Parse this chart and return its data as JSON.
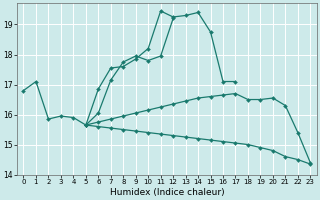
{
  "xlabel": "Humidex (Indice chaleur)",
  "bg_color": "#cdeaea",
  "grid_color": "#ffffff",
  "line_color": "#1a7a6e",
  "xlim": [
    -0.5,
    23.5
  ],
  "ylim": [
    14,
    19.7
  ],
  "yticks": [
    14,
    15,
    16,
    17,
    18,
    19
  ],
  "xticks": [
    0,
    1,
    2,
    3,
    4,
    5,
    6,
    7,
    8,
    9,
    10,
    11,
    12,
    13,
    14,
    15,
    16,
    17,
    18,
    19,
    20,
    21,
    22,
    23
  ],
  "line1_x": [
    0,
    1,
    2,
    3,
    4,
    5,
    6,
    7,
    8,
    9,
    10,
    11,
    12,
    13,
    14,
    15,
    16,
    17
  ],
  "line1_y": [
    16.8,
    17.1,
    15.85,
    15.95,
    15.9,
    15.65,
    16.85,
    17.55,
    17.6,
    17.85,
    18.2,
    19.45,
    19.25,
    19.3,
    19.4,
    18.75,
    17.1,
    17.1
  ],
  "line2_x": [
    5,
    6,
    7,
    8,
    9,
    10,
    11,
    12
  ],
  "line2_y": [
    15.65,
    16.05,
    17.15,
    17.75,
    17.95,
    17.8,
    17.95,
    19.2
  ],
  "line3_x": [
    5,
    6,
    7,
    8,
    9,
    10,
    11,
    12,
    13,
    14,
    15,
    16,
    17,
    18,
    19,
    20,
    21,
    22,
    23
  ],
  "line3_y": [
    15.65,
    15.75,
    15.85,
    15.95,
    16.05,
    16.15,
    16.25,
    16.35,
    16.45,
    16.55,
    16.6,
    16.65,
    16.7,
    16.5,
    16.5,
    16.55,
    16.3,
    15.4,
    14.4
  ],
  "line4_x": [
    5,
    6,
    7,
    8,
    9,
    10,
    11,
    12,
    13,
    14,
    15,
    16,
    17,
    18,
    19,
    20,
    21,
    22,
    23
  ],
  "line4_y": [
    15.65,
    15.6,
    15.55,
    15.5,
    15.45,
    15.4,
    15.35,
    15.3,
    15.25,
    15.2,
    15.15,
    15.1,
    15.05,
    15.0,
    14.9,
    14.8,
    14.6,
    14.5,
    14.35
  ]
}
